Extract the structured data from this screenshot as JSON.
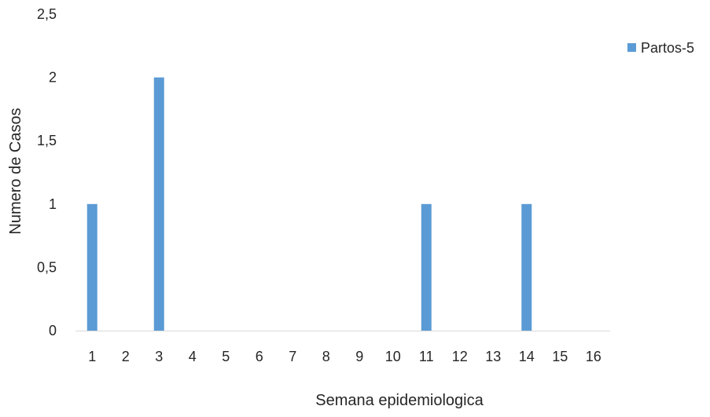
{
  "chart_data": {
    "type": "bar",
    "categories": [
      "1",
      "2",
      "3",
      "4",
      "5",
      "6",
      "7",
      "8",
      "9",
      "10",
      "11",
      "12",
      "13",
      "14",
      "15",
      "16"
    ],
    "series": [
      {
        "name": "Partos-5",
        "values": [
          1,
          0,
          2,
          0,
          0,
          0,
          0,
          0,
          0,
          0,
          1,
          0,
          0,
          1,
          0,
          0
        ],
        "color": "#5b9bd5"
      }
    ],
    "xlabel": "Semana epidemiologica",
    "ylabel": "Numero de Casos",
    "ylim": [
      0,
      2.5
    ],
    "yticks": [
      {
        "value": 0,
        "label": "0"
      },
      {
        "value": 0.5,
        "label": "0,5"
      },
      {
        "value": 1,
        "label": "1"
      },
      {
        "value": 1.5,
        "label": "1,5"
      },
      {
        "value": 2,
        "label": "2"
      },
      {
        "value": 2.5,
        "label": "2,5"
      }
    ],
    "grid": false,
    "legend_position": "top-right",
    "axis_color": "#d9d9d9"
  }
}
